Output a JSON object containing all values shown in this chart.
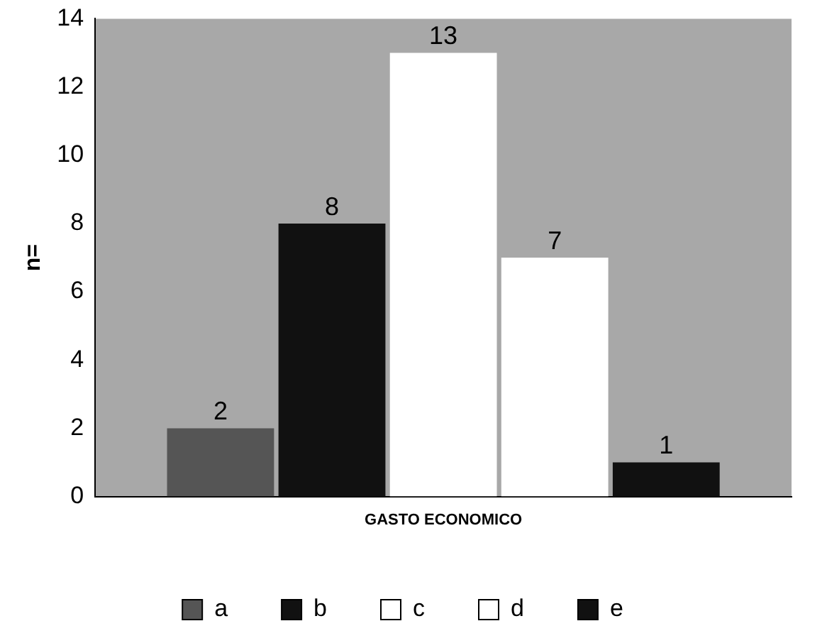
{
  "chart_data": {
    "type": "bar",
    "ylabel": "n=",
    "categories": [
      "GASTO ECONOMICO"
    ],
    "series": [
      {
        "name": "a",
        "color": "#555555",
        "values": [
          2
        ]
      },
      {
        "name": "b",
        "color": "#111111",
        "values": [
          8
        ]
      },
      {
        "name": "c",
        "color": "#ffffff",
        "values": [
          13
        ]
      },
      {
        "name": "d",
        "color": "#ffffff",
        "values": [
          7
        ]
      },
      {
        "name": "e",
        "color": "#111111",
        "values": [
          1
        ]
      }
    ],
    "ylim": [
      0,
      14
    ],
    "yticks": [
      0,
      2,
      4,
      6,
      8,
      10,
      12,
      14
    ],
    "grid": false,
    "legend": "bottom",
    "data_labels": true
  }
}
